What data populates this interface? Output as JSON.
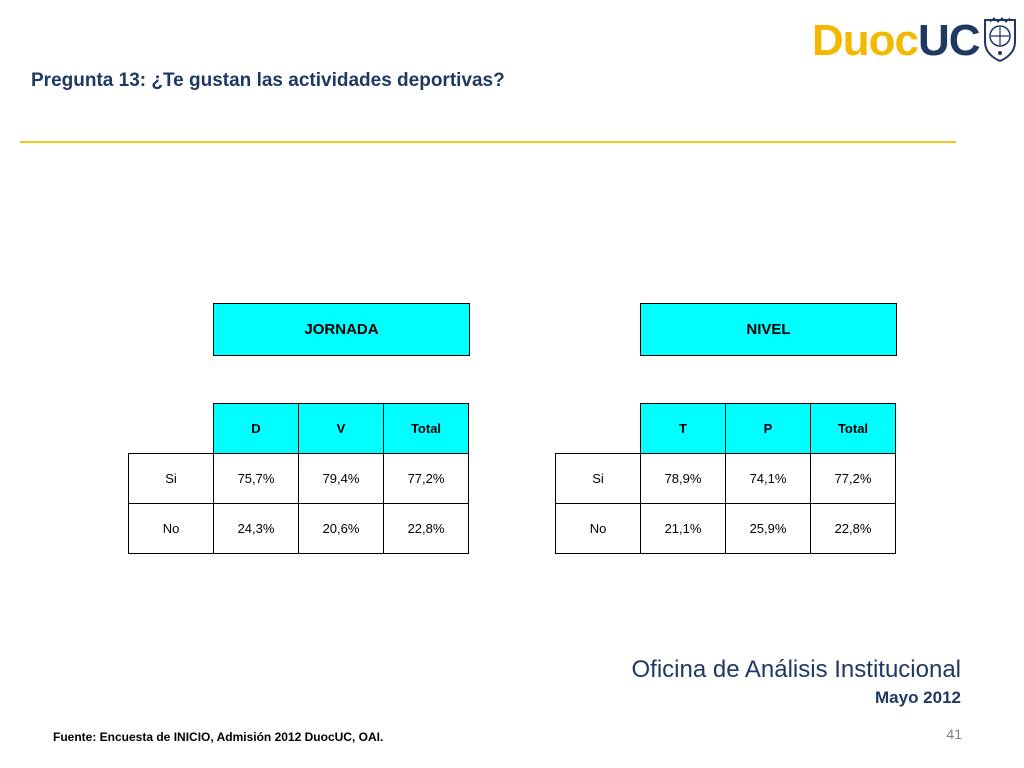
{
  "header": {
    "title": "Pregunta 13: ¿Te gustan las actividades deportivas?",
    "logo_text_duoc": "Duoc",
    "logo_text_uc": "UC"
  },
  "colors": {
    "title_blue": "#1f3864",
    "rule_yellow": "#f5c519",
    "header_cyan": "#00ffff",
    "logo_gold": "#f5b800"
  },
  "jornada": {
    "group_label": "JORNADA",
    "columns": [
      "D",
      "V",
      "Total"
    ],
    "rows": [
      {
        "label": "Si",
        "values": [
          "75,7%",
          "79,4%",
          "77,2%"
        ]
      },
      {
        "label": "No",
        "values": [
          "24,3%",
          "20,6%",
          "22,8%"
        ]
      }
    ]
  },
  "nivel": {
    "group_label": "NIVEL",
    "columns": [
      "T",
      "P",
      "Total"
    ],
    "rows": [
      {
        "label": "Si",
        "values": [
          "78,9%",
          "74,1%",
          "77,2%"
        ]
      },
      {
        "label": "No",
        "values": [
          "21,1%",
          "25,9%",
          "22,8%"
        ]
      }
    ]
  },
  "footer": {
    "office": "Oficina de Análisis Institucional",
    "date": "Mayo 2012",
    "source": "Fuente: Encuesta de INICIO, Admisión 2012 DuocUC, OAI.",
    "page_number": "41"
  }
}
